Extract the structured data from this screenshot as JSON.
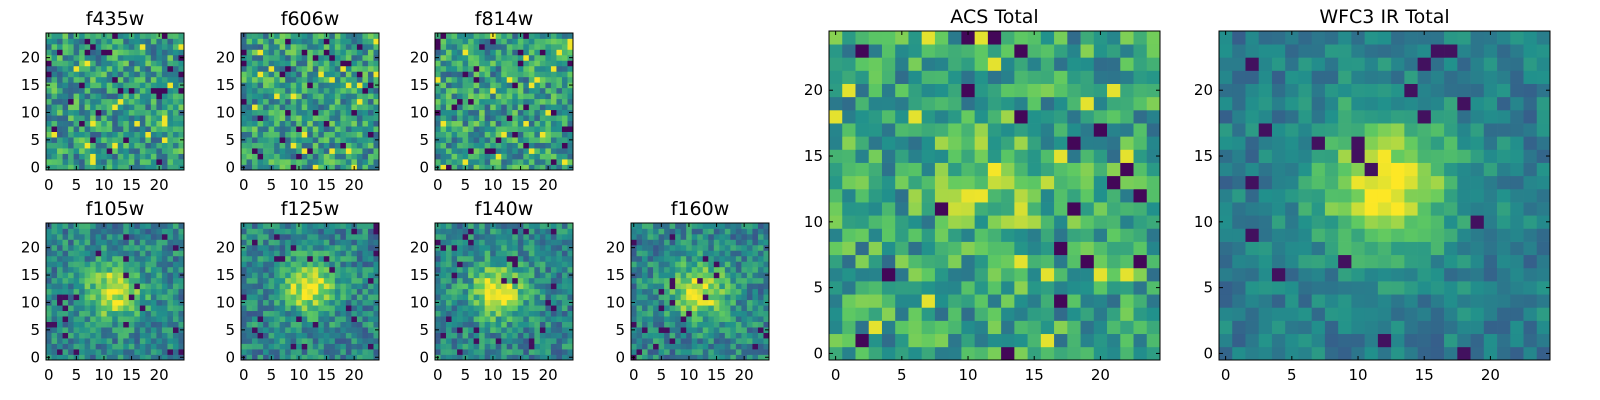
{
  "figure": {
    "background": "#ffffff"
  },
  "colormap": [
    "#440154",
    "#3b528b",
    "#21918c",
    "#5ec962",
    "#fde725"
  ],
  "chart_data": [
    {
      "type": "heatmap",
      "title": "f435w",
      "grid_size": 25,
      "pattern": "noise",
      "seed": 11,
      "x_ticks": [
        0,
        5,
        10,
        15,
        20
      ],
      "y_ticks": [
        0,
        5,
        10,
        15,
        20
      ],
      "xlim": [
        0,
        24
      ],
      "ylim": [
        0,
        24
      ]
    },
    {
      "type": "heatmap",
      "title": "f606w",
      "grid_size": 25,
      "pattern": "noise",
      "seed": 23,
      "x_ticks": [
        0,
        5,
        10,
        15,
        20
      ],
      "y_ticks": [
        0,
        5,
        10,
        15,
        20
      ],
      "xlim": [
        0,
        24
      ],
      "ylim": [
        0,
        24
      ]
    },
    {
      "type": "heatmap",
      "title": "f814w",
      "grid_size": 25,
      "pattern": "noise",
      "seed": 37,
      "x_ticks": [
        0,
        5,
        10,
        15,
        20
      ],
      "y_ticks": [
        0,
        5,
        10,
        15,
        20
      ],
      "xlim": [
        0,
        24
      ],
      "ylim": [
        0,
        24
      ]
    },
    {
      "type": "heatmap",
      "title": "f105w",
      "grid_size": 25,
      "pattern": "source",
      "seed": 41,
      "center": [
        12,
        12
      ],
      "x_ticks": [
        0,
        5,
        10,
        15,
        20
      ],
      "y_ticks": [
        0,
        5,
        10,
        15,
        20
      ],
      "xlim": [
        0,
        24
      ],
      "ylim": [
        0,
        24
      ]
    },
    {
      "type": "heatmap",
      "title": "f125w",
      "grid_size": 25,
      "pattern": "source",
      "seed": 53,
      "center": [
        12,
        13
      ],
      "x_ticks": [
        0,
        5,
        10,
        15,
        20
      ],
      "y_ticks": [
        0,
        5,
        10,
        15,
        20
      ],
      "xlim": [
        0,
        24
      ],
      "ylim": [
        0,
        24
      ]
    },
    {
      "type": "heatmap",
      "title": "f140w",
      "grid_size": 25,
      "pattern": "source",
      "seed": 67,
      "center": [
        11,
        12
      ],
      "x_ticks": [
        0,
        5,
        10,
        15,
        20
      ],
      "y_ticks": [
        0,
        5,
        10,
        15,
        20
      ],
      "xlim": [
        0,
        24
      ],
      "ylim": [
        0,
        24
      ]
    },
    {
      "type": "heatmap",
      "title": "f160w",
      "grid_size": 25,
      "pattern": "source",
      "seed": 79,
      "center": [
        12,
        12
      ],
      "x_ticks": [
        0,
        5,
        10,
        15,
        20
      ],
      "y_ticks": [
        0,
        5,
        10,
        15,
        20
      ],
      "xlim": [
        0,
        24
      ],
      "ylim": [
        0,
        24
      ]
    },
    {
      "type": "heatmap",
      "title": "ACS Total",
      "grid_size": 25,
      "pattern": "noise-faint",
      "seed": 97,
      "center": [
        12,
        13
      ],
      "x_ticks": [
        0,
        5,
        10,
        15,
        20
      ],
      "y_ticks": [
        0,
        5,
        10,
        15,
        20
      ],
      "xlim": [
        0,
        24
      ],
      "ylim": [
        0,
        24
      ]
    },
    {
      "type": "heatmap",
      "title": "WFC3 IR Total",
      "grid_size": 25,
      "pattern": "source-strong",
      "seed": 101,
      "center": [
        12,
        13
      ],
      "x_ticks": [
        0,
        5,
        10,
        15,
        20
      ],
      "y_ticks": [
        0,
        5,
        10,
        15,
        20
      ],
      "xlim": [
        0,
        24
      ],
      "ylim": [
        0,
        24
      ]
    }
  ]
}
